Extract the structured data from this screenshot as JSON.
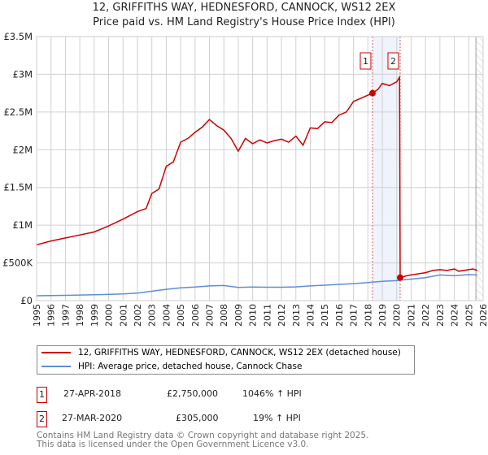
{
  "title": "12, GRIFFITHS WAY, HEDNESFORD, CANNOCK, WS12 2EX",
  "subtitle": "Price paid vs. HM Land Registry's House Price Index (HPI)",
  "chart_data": {
    "type": "line",
    "title": "12, GRIFFITHS WAY, HEDNESFORD, CANNOCK, WS12 2EX",
    "subtitle": "Price paid vs. HM Land Registry's House Price Index (HPI)",
    "xlim": [
      1995,
      2026
    ],
    "ylim": [
      0,
      3500000
    ],
    "x_ticks": [
      "1995",
      "1996",
      "1997",
      "1998",
      "1999",
      "2000",
      "2001",
      "2002",
      "2003",
      "2004",
      "2005",
      "2006",
      "2007",
      "2008",
      "2009",
      "2010",
      "2011",
      "2012",
      "2013",
      "2014",
      "2015",
      "2016",
      "2017",
      "2018",
      "2019",
      "2020",
      "2021",
      "2022",
      "2023",
      "2024",
      "2025",
      "2026"
    ],
    "y_ticks": [
      {
        "v": 0,
        "label": "£0"
      },
      {
        "v": 500000,
        "label": "£500K"
      },
      {
        "v": 1000000,
        "label": "£1M"
      },
      {
        "v": 1500000,
        "label": "£1.5M"
      },
      {
        "v": 2000000,
        "label": "£2M"
      },
      {
        "v": 2500000,
        "label": "£2.5M"
      },
      {
        "v": 3000000,
        "label": "£3M"
      },
      {
        "v": 3500000,
        "label": "£3.5M"
      }
    ],
    "grid": true,
    "series": [
      {
        "name": "12, GRIFFITHS WAY, HEDNESFORD, CANNOCK, WS12 2EX (detached house)",
        "color": "#cc0000",
        "x": [
          1995,
          1996,
          1997,
          1998,
          1999,
          2000,
          2001,
          2002,
          2002.6,
          2003,
          2003.5,
          2004,
          2004.5,
          2005,
          2005.5,
          2006,
          2006.5,
          2007,
          2007.5,
          2008,
          2008.5,
          2009,
          2009.5,
          2010,
          2010.5,
          2011,
          2011.5,
          2012,
          2012.5,
          2013,
          2013.5,
          2014,
          2014.5,
          2015,
          2015.5,
          2016,
          2016.5,
          2017,
          2017.5,
          2018.32,
          2018.7,
          2019,
          2019.5,
          2020,
          2020.2,
          2020.24,
          2020.7,
          2021,
          2021.5,
          2022,
          2022.5,
          2023,
          2023.5,
          2024,
          2024.3,
          2025,
          2025.3,
          2025.6
        ],
        "y": [
          740000,
          790000,
          830000,
          870000,
          910000,
          990000,
          1080000,
          1180000,
          1220000,
          1420000,
          1480000,
          1780000,
          1840000,
          2100000,
          2150000,
          2230000,
          2300000,
          2400000,
          2320000,
          2260000,
          2150000,
          1980000,
          2150000,
          2080000,
          2130000,
          2090000,
          2120000,
          2140000,
          2100000,
          2180000,
          2060000,
          2290000,
          2280000,
          2370000,
          2360000,
          2460000,
          2500000,
          2640000,
          2680000,
          2750000,
          2800000,
          2880000,
          2850000,
          2900000,
          2960000,
          305000,
          330000,
          340000,
          355000,
          370000,
          400000,
          410000,
          400000,
          420000,
          390000,
          410000,
          420000,
          400000
        ]
      },
      {
        "name": "HPI: Average price, detached house, Cannock Chase",
        "color": "#5b8fd6",
        "x": [
          1995,
          1997,
          1999,
          2001,
          2002,
          2003,
          2004,
          2005,
          2006,
          2007,
          2008,
          2009,
          2010,
          2011,
          2012,
          2013,
          2014,
          2015,
          2016,
          2017,
          2018,
          2019,
          2020,
          2021,
          2022,
          2023,
          2024,
          2025,
          2025.6
        ],
        "y": [
          65000,
          70000,
          78000,
          88000,
          100000,
          125000,
          150000,
          170000,
          180000,
          195000,
          200000,
          175000,
          180000,
          178000,
          178000,
          182000,
          195000,
          205000,
          215000,
          225000,
          240000,
          255000,
          265000,
          285000,
          305000,
          340000,
          330000,
          345000,
          340000
        ]
      }
    ],
    "sales": [
      {
        "id": "1",
        "x": 2018.32,
        "y": 2750000,
        "date": "27-APR-2018",
        "price": "£2,750,000",
        "hpi": "1046% ↑ HPI"
      },
      {
        "id": "2",
        "x": 2020.24,
        "y": 305000,
        "date": "27-MAR-2020",
        "price": "£305,000",
        "hpi": "19% ↑ HPI"
      }
    ],
    "future_hatch_from": 2025.5,
    "legend_position": "below"
  },
  "footer": [
    "Contains HM Land Registry data © Crown copyright and database right 2025.",
    "This data is licensed under the Open Government Licence v3.0."
  ]
}
